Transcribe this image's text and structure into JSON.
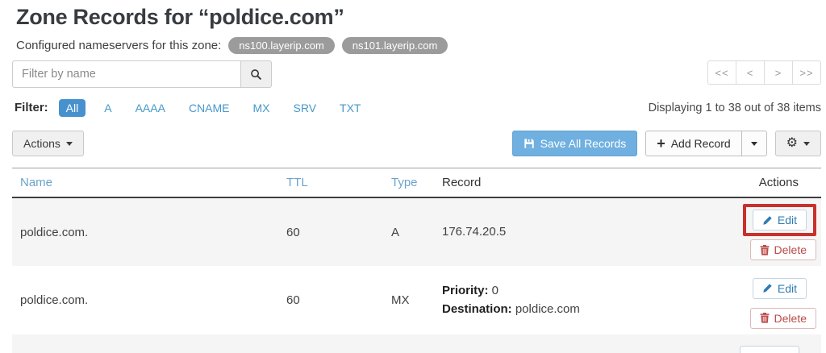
{
  "page": {
    "title": "Zone Records for “poldice.com”"
  },
  "nameservers": {
    "label": "Configured nameservers for this zone:",
    "items": [
      "ns100.layerip.com",
      "ns101.layerip.com"
    ]
  },
  "search": {
    "placeholder": "Filter by name"
  },
  "filter": {
    "label": "Filter:",
    "options": [
      {
        "label": "All",
        "active": true
      },
      {
        "label": "A"
      },
      {
        "label": "AAAA"
      },
      {
        "label": "CNAME"
      },
      {
        "label": "MX"
      },
      {
        "label": "SRV"
      },
      {
        "label": "TXT"
      }
    ]
  },
  "pagination": {
    "first": "<<",
    "prev": "<",
    "next": ">",
    "last": ">>",
    "status": "Displaying 1 to 38 out of 38 items"
  },
  "toolbar": {
    "actions_label": "Actions",
    "save_label": "Save All Records",
    "add_plus": "+",
    "add_label": "Add Record"
  },
  "table": {
    "headers": [
      {
        "label": "Name",
        "link": true
      },
      {
        "label": "TTL",
        "link": true
      },
      {
        "label": "Type",
        "link": true
      },
      {
        "label": "Record",
        "link": false
      },
      {
        "label": "Actions",
        "link": false,
        "align": "right"
      }
    ],
    "action_labels": {
      "edit": "Edit",
      "delete": "Delete"
    },
    "rows": [
      {
        "name": "poldice.com.",
        "ttl": "60",
        "type": "A",
        "record": [
          {
            "value": "176.74.20.5"
          }
        ],
        "shaded": true,
        "highlight_edit": true
      },
      {
        "name": "poldice.com.",
        "ttl": "60",
        "type": "MX",
        "record": [
          {
            "label": "Priority:",
            "value": "0"
          },
          {
            "label": "Destination:",
            "value": "poldice.com"
          }
        ],
        "shaded": false,
        "highlight_edit": false
      },
      {
        "partial": true,
        "shaded": true
      }
    ]
  },
  "colors": {
    "link_blue": "#4597cb",
    "active_filter_bg": "#4791cf",
    "header_link_blue": "#6ba3cb",
    "save_button_bg": "#6fb0e0",
    "edit_text": "#2e7bb4",
    "delete_text": "#b94a48",
    "annotation_red": "#c9302c",
    "nameserver_pill_gray": "#9b9b9b"
  }
}
